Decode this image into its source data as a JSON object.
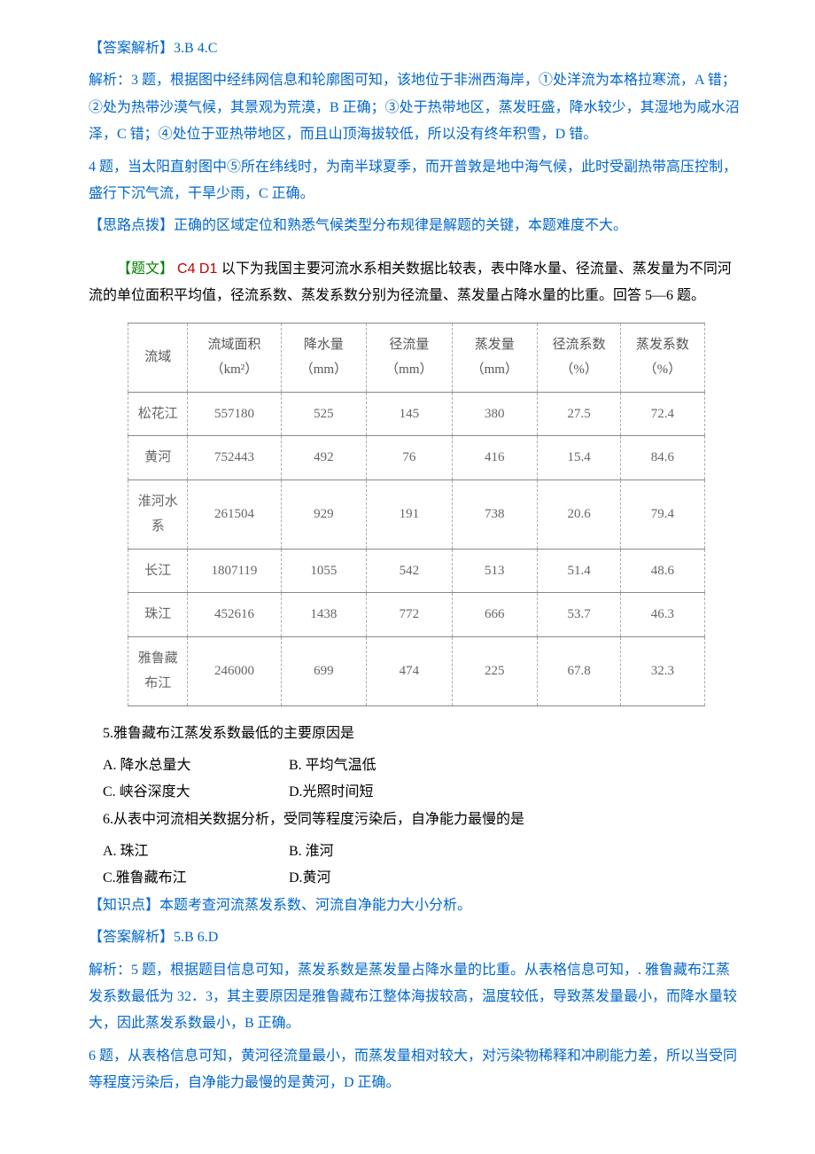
{
  "block1": {
    "ans_label": "【答案解析】",
    "ans_text": "3.B   4.C",
    "exp_label": "解析：",
    "q3_label": "3 题，",
    "q3_text": "根据图中经纬网信息和轮廓图可知，该地位于非洲西海岸，①处洋流为本格拉寒流，A 错；②处为热带沙漠气候，其景观为荒漠，B 正确；③处于热带地区，蒸发旺盛，降水较少，其湿地为咸水沼泽，C 错；④处位于亚热带地区，而且山顶海拔较低，所以没有终年积雪，D 错。",
    "q4_label": "4 题，",
    "q4_text": "当太阳直射图中⑤所在纬线时，为南半球夏季，而开普敦是地中海气候，此时受副热带高压控制，盛行下沉气流，干旱少雨，C 正确。",
    "tip_label": "【思路点拨】",
    "tip_text": "正确的区域定位和熟悉气候类型分布规律是解题的关键，本题难度不大。"
  },
  "block2": {
    "title_label": "【题文】",
    "tags": " C4   D1 ",
    "intro": "以下为我国主要河流水系相关数据比较表，表中降水量、径流量、蒸发量为不同河流的单位面积平均值，径流系数、蒸发系数分别为径流量、蒸发量占降水量的比重。回答 5—6 题。"
  },
  "table": {
    "columns": [
      "流域",
      "流域面积（km²）",
      "降水量（mm）",
      "径流量（mm）",
      "蒸发量（mm）",
      "径流系数（%）",
      "蒸发系数（%）"
    ],
    "rows": [
      [
        "松花江",
        "557180",
        "525",
        "145",
        "380",
        "27.5",
        "72.4"
      ],
      [
        "黄河",
        "752443",
        "492",
        "76",
        "416",
        "15.4",
        "84.6"
      ],
      [
        "淮河水系",
        "261504",
        "929",
        "191",
        "738",
        "20.6",
        "79.4"
      ],
      [
        "长江",
        "1807119",
        "1055",
        "542",
        "513",
        "51.4",
        "48.6"
      ],
      [
        "珠江",
        "452616",
        "1438",
        "772",
        "666",
        "53.7",
        "46.3"
      ],
      [
        "雅鲁藏布江",
        "246000",
        "699",
        "474",
        "225",
        "67.8",
        "32.3"
      ]
    ]
  },
  "q5": {
    "stem": "5.雅鲁藏布江蒸发系数最低的主要原因是",
    "optA": "A.  降水总量大",
    "optB": "B.   平均气温低",
    "optC": "C.  峡谷深度大",
    "optD": "D.光照时间短"
  },
  "q6": {
    "stem": "6.从表中河流相关数据分析，受同等程度污染后，自净能力最慢的是",
    "optA": "A.  珠江",
    "optB": "B.  淮河",
    "optC": "C.雅鲁藏布江",
    "optD": "D.黄河"
  },
  "block3": {
    "kp_label": "【知识点】",
    "kp_text": "本题考查河流蒸发系数、河流自净能力大小分析。",
    "ans_label": "【答案解析】",
    "ans_text": "5.B   6.D",
    "exp_label": "解析：",
    "q5_label": "5 题，",
    "q5_text": "根据题目信息可知，蒸发系数是蒸发量占降水量的比重。从表格信息可知，. 雅鲁藏布江蒸发系数最低为 32．3，其主要原因是雅鲁藏布江整体海拔较高，温度较低，导致蒸发量最小，而降水量较大，因此蒸发系数最小，B 正确。",
    "q6_label": "6 题，",
    "q6_text": "从表格信息可知，黄河径流量最小，而蒸发量相对较大，对污染物稀释和冲刷能力差，所以当受同等程度污染后，自净能力最慢的是黄河，D 正确。"
  }
}
